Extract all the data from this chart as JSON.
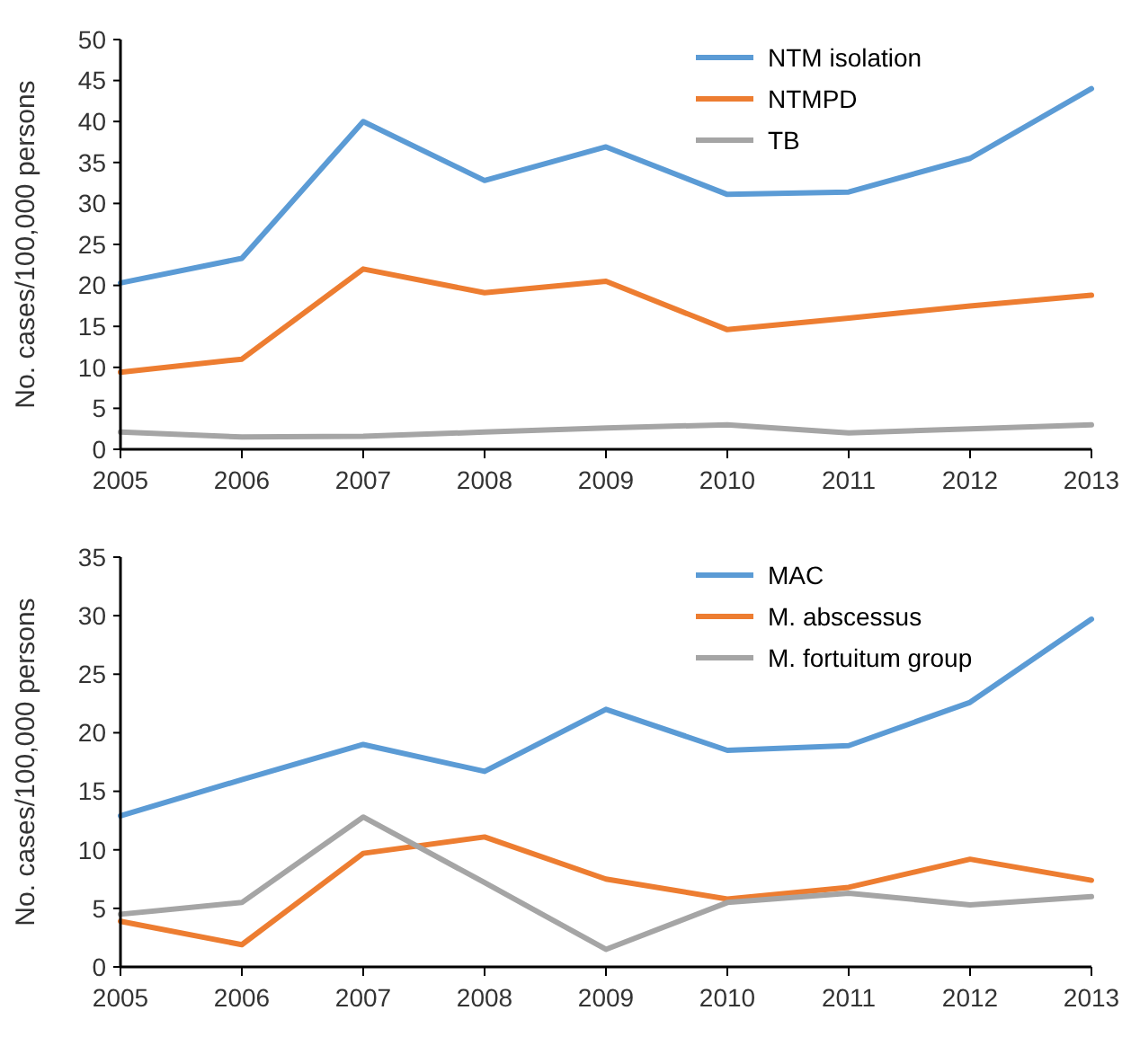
{
  "chart_data": [
    {
      "type": "line",
      "categories": [
        "2005",
        "2006",
        "2007",
        "2008",
        "2009",
        "2010",
        "2011",
        "2012",
        "2013"
      ],
      "ylabel": "No. cases/100,000 persons",
      "ylim": [
        0,
        50
      ],
      "yticks": [
        0,
        5,
        10,
        15,
        20,
        25,
        30,
        35,
        40,
        45,
        50
      ],
      "legend": "top right",
      "grid": false,
      "series": [
        {
          "name": "NTM isolation",
          "color": "#5b9bd5",
          "values": [
            20.3,
            23.3,
            40,
            32.8,
            36.9,
            31.1,
            31.4,
            35.5,
            44
          ]
        },
        {
          "name": "NTMPD",
          "color": "#ed7d31",
          "values": [
            9.4,
            11,
            22,
            19.1,
            20.5,
            14.6,
            16,
            17.5,
            18.8
          ]
        },
        {
          "name": "TB",
          "color": "#a5a5a5",
          "values": [
            2.1,
            1.5,
            1.6,
            2.1,
            2.6,
            3,
            2,
            2.5,
            3
          ]
        }
      ]
    },
    {
      "type": "line",
      "categories": [
        "2005",
        "2006",
        "2007",
        "2008",
        "2009",
        "2010",
        "2011",
        "2012",
        "2013"
      ],
      "ylabel": "No. cases/100,000 persons",
      "ylim": [
        0,
        35
      ],
      "yticks": [
        0,
        5,
        10,
        15,
        20,
        25,
        30,
        35
      ],
      "legend": "top right",
      "grid": false,
      "series": [
        {
          "name": "MAC",
          "color": "#5b9bd5",
          "values": [
            12.9,
            16,
            19,
            16.7,
            22,
            18.5,
            18.9,
            22.6,
            29.7
          ]
        },
        {
          "name": "M. abscessus",
          "color": "#ed7d31",
          "values": [
            3.9,
            1.9,
            9.7,
            11.1,
            7.5,
            5.8,
            6.8,
            9.2,
            7.4
          ]
        },
        {
          "name": "M. fortuitum group",
          "color": "#a5a5a5",
          "values": [
            4.5,
            5.5,
            12.8,
            7.2,
            1.5,
            5.5,
            6.3,
            5.3,
            6.0
          ]
        }
      ]
    }
  ]
}
